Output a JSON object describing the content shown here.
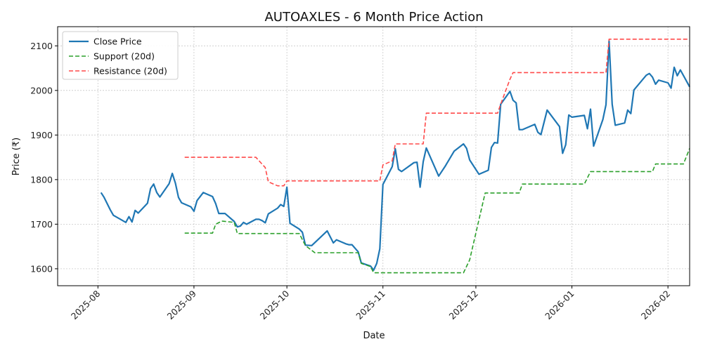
{
  "chart_data": {
    "type": "line",
    "title": "AUTOAXLES - 6 Month Price Action",
    "xlabel": "Date",
    "ylabel": "Price (₹)",
    "xlim": [
      "2025-07-19",
      "2026-02-08"
    ],
    "ylim": [
      1562,
      2143
    ],
    "x_ticks": [
      "2025-08-01",
      "2025-09-01",
      "2025-10-01",
      "2025-11-01",
      "2025-12-01",
      "2026-01-01",
      "2026-02-01"
    ],
    "x_tick_labels": [
      "2025-08",
      "2025-09",
      "2025-10",
      "2025-11",
      "2025-12",
      "2026-01",
      "2026-02"
    ],
    "y_ticks": [
      1600,
      1700,
      1800,
      1900,
      2000,
      2100
    ],
    "y_tick_labels": [
      "1600",
      "1700",
      "1800",
      "1900",
      "2000",
      "2100"
    ],
    "grid": true,
    "legend_position": "top-left",
    "series": [
      {
        "name": "Close Price",
        "color": "#1f77b4",
        "style": "solid",
        "points": [
          [
            "2025-08-02",
            1771
          ],
          [
            "2025-08-03",
            1760
          ],
          [
            "2025-08-05",
            1732
          ],
          [
            "2025-08-06",
            1720
          ],
          [
            "2025-08-08",
            1712
          ],
          [
            "2025-08-10",
            1704
          ],
          [
            "2025-08-11",
            1717
          ],
          [
            "2025-08-12",
            1705
          ],
          [
            "2025-08-13",
            1731
          ],
          [
            "2025-08-14",
            1725
          ],
          [
            "2025-08-17",
            1747
          ],
          [
            "2025-08-18",
            1780
          ],
          [
            "2025-08-19",
            1790
          ],
          [
            "2025-08-20",
            1771
          ],
          [
            "2025-08-21",
            1761
          ],
          [
            "2025-08-24",
            1791
          ],
          [
            "2025-08-25",
            1814
          ],
          [
            "2025-08-26",
            1792
          ],
          [
            "2025-08-27",
            1760
          ],
          [
            "2025-08-28",
            1748
          ],
          [
            "2025-08-31",
            1739
          ],
          [
            "2025-09-01",
            1729
          ],
          [
            "2025-09-02",
            1753
          ],
          [
            "2025-09-04",
            1771
          ],
          [
            "2025-09-07",
            1762
          ],
          [
            "2025-09-08",
            1746
          ],
          [
            "2025-09-09",
            1724
          ],
          [
            "2025-09-10",
            1724
          ],
          [
            "2025-09-11",
            1724
          ],
          [
            "2025-09-14",
            1706
          ],
          [
            "2025-09-15",
            1694
          ],
          [
            "2025-09-16",
            1696
          ],
          [
            "2025-09-17",
            1704
          ],
          [
            "2025-09-18",
            1700
          ],
          [
            "2025-09-21",
            1711
          ],
          [
            "2025-09-22",
            1711
          ],
          [
            "2025-09-23",
            1708
          ],
          [
            "2025-09-24",
            1703
          ],
          [
            "2025-09-25",
            1723
          ],
          [
            "2025-09-28",
            1736
          ],
          [
            "2025-09-29",
            1744
          ],
          [
            "2025-09-30",
            1740
          ],
          [
            "2025-10-01",
            1783
          ],
          [
            "2025-10-02",
            1702
          ],
          [
            "2025-10-05",
            1689
          ],
          [
            "2025-10-06",
            1682
          ],
          [
            "2025-10-07",
            1653
          ],
          [
            "2025-10-09",
            1652
          ],
          [
            "2025-10-14",
            1685
          ],
          [
            "2025-10-16",
            1658
          ],
          [
            "2025-10-17",
            1665
          ],
          [
            "2025-10-20",
            1656
          ],
          [
            "2025-10-21",
            1654
          ],
          [
            "2025-10-22",
            1654
          ],
          [
            "2025-10-24",
            1638
          ],
          [
            "2025-10-25",
            1613
          ],
          [
            "2025-10-28",
            1606
          ],
          [
            "2025-10-29",
            1597
          ],
          [
            "2025-10-30",
            1612
          ],
          [
            "2025-10-31",
            1645
          ],
          [
            "2025-11-01",
            1789
          ],
          [
            "2025-11-04",
            1829
          ],
          [
            "2025-11-05",
            1869
          ],
          [
            "2025-11-06",
            1823
          ],
          [
            "2025-11-07",
            1818
          ],
          [
            "2025-11-11",
            1838
          ],
          [
            "2025-11-12",
            1839
          ],
          [
            "2025-11-13",
            1783
          ],
          [
            "2025-11-14",
            1840
          ],
          [
            "2025-11-15",
            1871
          ],
          [
            "2025-11-19",
            1808
          ],
          [
            "2025-11-21",
            1829
          ],
          [
            "2025-11-24",
            1864
          ],
          [
            "2025-11-27",
            1880
          ],
          [
            "2025-11-28",
            1870
          ],
          [
            "2025-11-29",
            1844
          ],
          [
            "2025-12-02",
            1812
          ],
          [
            "2025-12-05",
            1821
          ],
          [
            "2025-12-06",
            1872
          ],
          [
            "2025-12-07",
            1883
          ],
          [
            "2025-12-08",
            1882
          ],
          [
            "2025-12-09",
            1969
          ],
          [
            "2025-12-12",
            1998
          ],
          [
            "2025-12-13",
            1978
          ],
          [
            "2025-12-14",
            1972
          ],
          [
            "2025-12-15",
            1912
          ],
          [
            "2025-12-16",
            1912
          ],
          [
            "2025-12-20",
            1924
          ],
          [
            "2025-12-21",
            1906
          ],
          [
            "2025-12-22",
            1901
          ],
          [
            "2025-12-24",
            1956
          ],
          [
            "2025-12-28",
            1919
          ],
          [
            "2025-12-29",
            1859
          ],
          [
            "2025-12-30",
            1878
          ],
          [
            "2025-12-31",
            1945
          ],
          [
            "2026-01-01",
            1940
          ],
          [
            "2026-01-05",
            1944
          ],
          [
            "2026-01-06",
            1914
          ],
          [
            "2026-01-07",
            1958
          ],
          [
            "2026-01-08",
            1875
          ],
          [
            "2026-01-11",
            1935
          ],
          [
            "2026-01-12",
            1968
          ],
          [
            "2026-01-13",
            2111
          ],
          [
            "2026-01-14",
            1969
          ],
          [
            "2026-01-15",
            1922
          ],
          [
            "2026-01-18",
            1927
          ],
          [
            "2026-01-19",
            1956
          ],
          [
            "2026-01-20",
            1948
          ],
          [
            "2026-01-21",
            2001
          ],
          [
            "2026-01-25",
            2034
          ],
          [
            "2026-01-26",
            2038
          ],
          [
            "2026-01-27",
            2030
          ],
          [
            "2026-01-28",
            2014
          ],
          [
            "2026-01-29",
            2023
          ],
          [
            "2026-02-01",
            2017
          ],
          [
            "2026-02-02",
            2005
          ],
          [
            "2026-02-03",
            2052
          ],
          [
            "2026-02-04",
            2033
          ],
          [
            "2026-02-05",
            2046
          ],
          [
            "2026-02-08",
            2008
          ]
        ]
      },
      {
        "name": "Support (20d)",
        "color": "#2ca02c",
        "style": "dashed",
        "points": [
          [
            "2025-08-29",
            1680
          ],
          [
            "2025-09-07",
            1680
          ],
          [
            "2025-09-08",
            1700
          ],
          [
            "2025-09-10",
            1707
          ],
          [
            "2025-09-14",
            1704
          ],
          [
            "2025-09-15",
            1679
          ],
          [
            "2025-10-05",
            1679
          ],
          [
            "2025-10-07",
            1652
          ],
          [
            "2025-10-10",
            1636
          ],
          [
            "2025-10-24",
            1636
          ],
          [
            "2025-10-25",
            1612
          ],
          [
            "2025-10-28",
            1605
          ],
          [
            "2025-10-29",
            1591
          ],
          [
            "2025-11-27",
            1591
          ],
          [
            "2025-11-29",
            1620
          ],
          [
            "2025-11-30",
            1650
          ],
          [
            "2025-12-02",
            1710
          ],
          [
            "2025-12-04",
            1770
          ],
          [
            "2025-12-15",
            1770
          ],
          [
            "2025-12-16",
            1790
          ],
          [
            "2026-01-05",
            1790
          ],
          [
            "2026-01-07",
            1818
          ],
          [
            "2026-01-27",
            1818
          ],
          [
            "2026-01-28",
            1835
          ],
          [
            "2026-02-06",
            1835
          ],
          [
            "2026-02-08",
            1870
          ]
        ]
      },
      {
        "name": "Resistance (20d)",
        "color": "#ff4a4a",
        "style": "dashed",
        "points": [
          [
            "2025-08-29",
            1850
          ],
          [
            "2025-09-21",
            1850
          ],
          [
            "2025-09-24",
            1827
          ],
          [
            "2025-09-25",
            1795
          ],
          [
            "2025-09-28",
            1786
          ],
          [
            "2025-09-30",
            1786
          ],
          [
            "2025-10-01",
            1797
          ],
          [
            "2025-10-31",
            1797
          ],
          [
            "2025-11-01",
            1833
          ],
          [
            "2025-11-04",
            1842
          ],
          [
            "2025-11-05",
            1880
          ],
          [
            "2025-11-14",
            1880
          ],
          [
            "2025-11-15",
            1949
          ],
          [
            "2025-12-08",
            1949
          ],
          [
            "2025-12-09",
            1969
          ],
          [
            "2025-12-12",
            2025
          ],
          [
            "2025-12-13",
            2040
          ],
          [
            "2026-01-12",
            2040
          ],
          [
            "2026-01-13",
            2115
          ],
          [
            "2026-02-08",
            2115
          ]
        ]
      }
    ]
  }
}
